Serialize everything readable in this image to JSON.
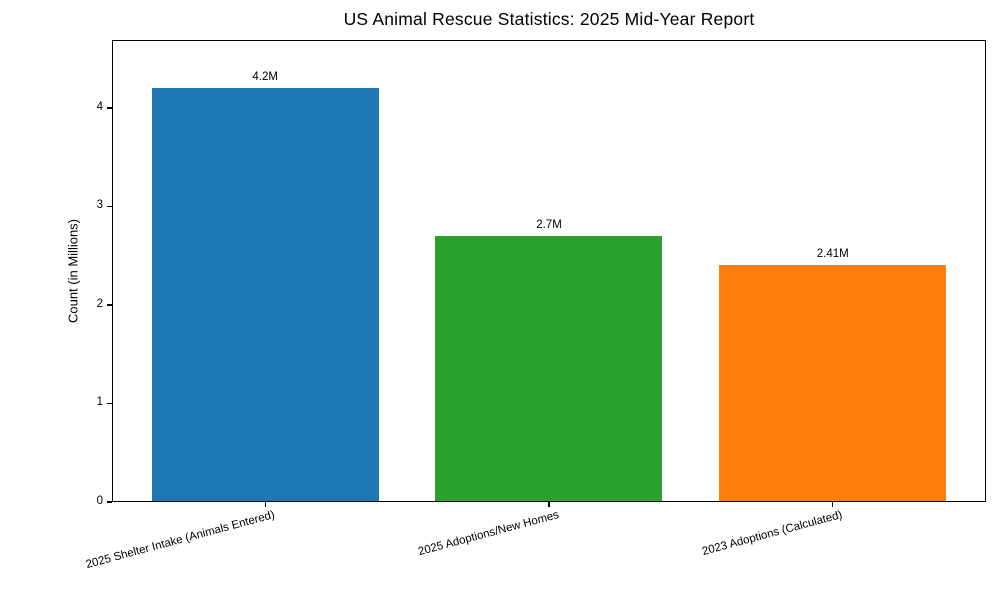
{
  "chart_data": {
    "type": "bar",
    "title": "US Animal Rescue Statistics: 2025 Mid-Year Report",
    "xlabel": "",
    "ylabel": "Count (in Millions)",
    "categories": [
      "2025 Shelter Intake (Animals Entered)",
      "2025 Adoptions/New Homes",
      "2023 Adoptions (Calculated)"
    ],
    "values": [
      4.2,
      2.7,
      2.41
    ],
    "bar_labels": [
      "4.2M",
      "2.7M",
      "2.41M"
    ],
    "bar_colors": [
      "#1f77b4",
      "#2ca02c",
      "#ff7f0e"
    ],
    "yticks": [
      0,
      1,
      2,
      3,
      4
    ],
    "ylim": [
      0,
      4.69
    ],
    "xtick_rotation_deg": 15,
    "grid": false,
    "legend": "none",
    "spine_color": "#000000",
    "text_color": "#000000",
    "background": "#ffffff"
  }
}
